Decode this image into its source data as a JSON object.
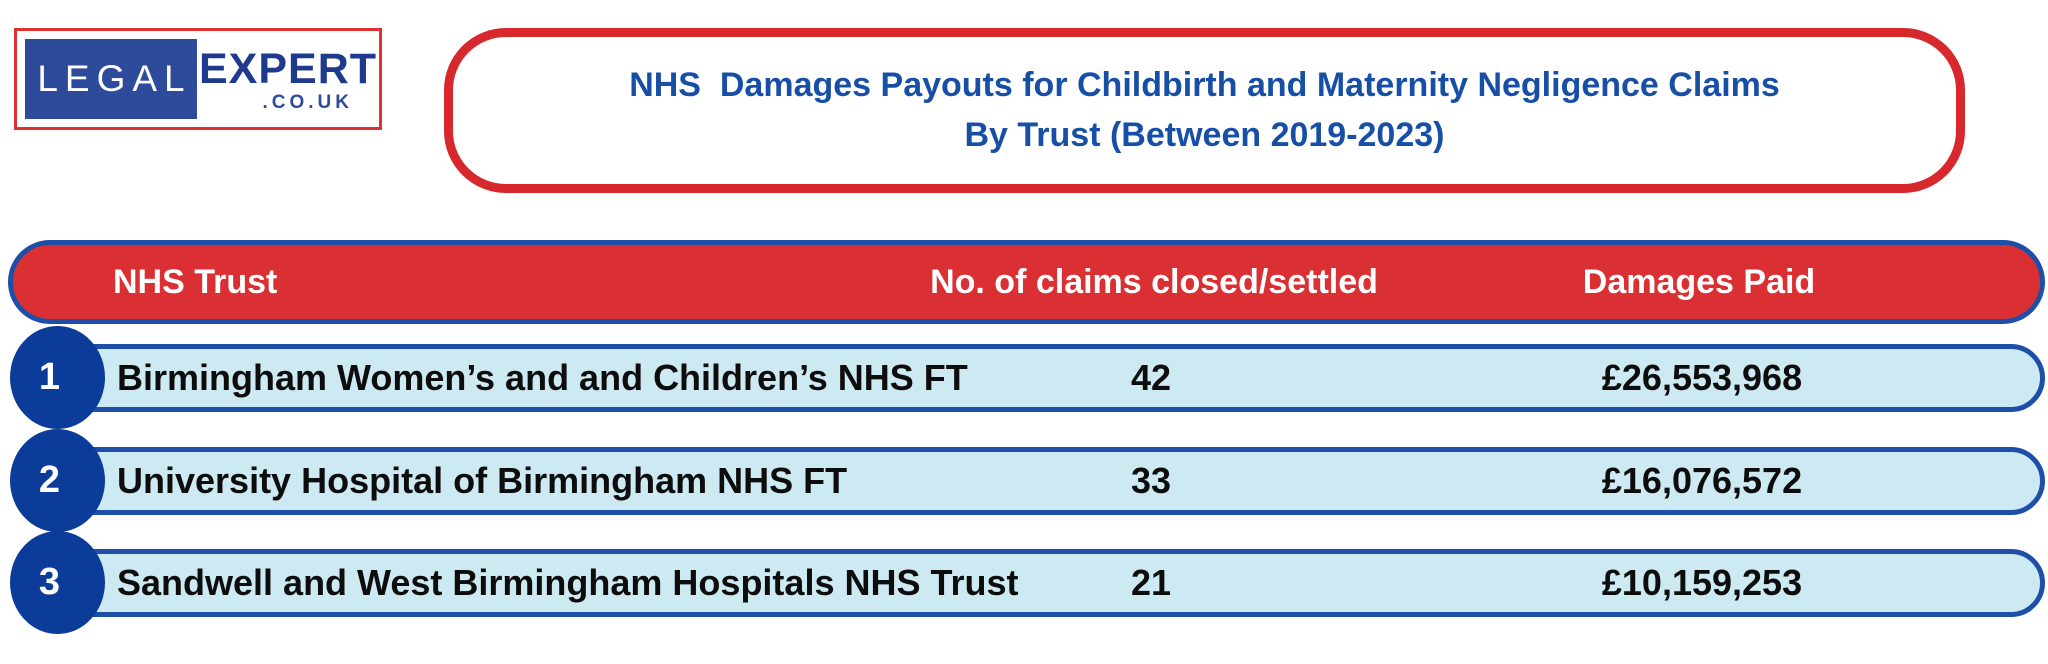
{
  "logo": {
    "word1": "LEGAL",
    "word2": "EXPERT",
    "suffix": ".CO.UK"
  },
  "title": {
    "line1": "NHS  Damages Payouts for Childbirth and Maternity Negligence Claims",
    "line2": "By Trust (Between 2019-2023)"
  },
  "table": {
    "headers": {
      "trust": "NHS Trust",
      "claims": "No. of claims closed/settled",
      "damages": "Damages Paid"
    },
    "rows": [
      {
        "rank": "1",
        "trust": "Birmingham Women’s and and Children’s NHS FT",
        "claims": "42",
        "damages": "£26,553,968"
      },
      {
        "rank": "2",
        "trust": "University Hospital of Birmingham NHS FT",
        "claims": "33",
        "damages": "£16,076,572"
      },
      {
        "rank": "3",
        "trust": "Sandwell and West Birmingham Hospitals NHS Trust",
        "claims": "21",
        "damages": "£10,159,253"
      }
    ]
  },
  "colors": {
    "header_red": "#da2f33",
    "title_border_red": "#d7282d",
    "logo_border_red": "#e03131",
    "band_border_blue": "#1d4fa8",
    "circle_blue": "#0b3c9a",
    "logo_blue": "#2d4a9b",
    "title_text_blue": "#174fa7",
    "row_fill_light_blue": "#cde9f1",
    "text_black": "#0d0d0d",
    "text_white": "#ffffff"
  }
}
